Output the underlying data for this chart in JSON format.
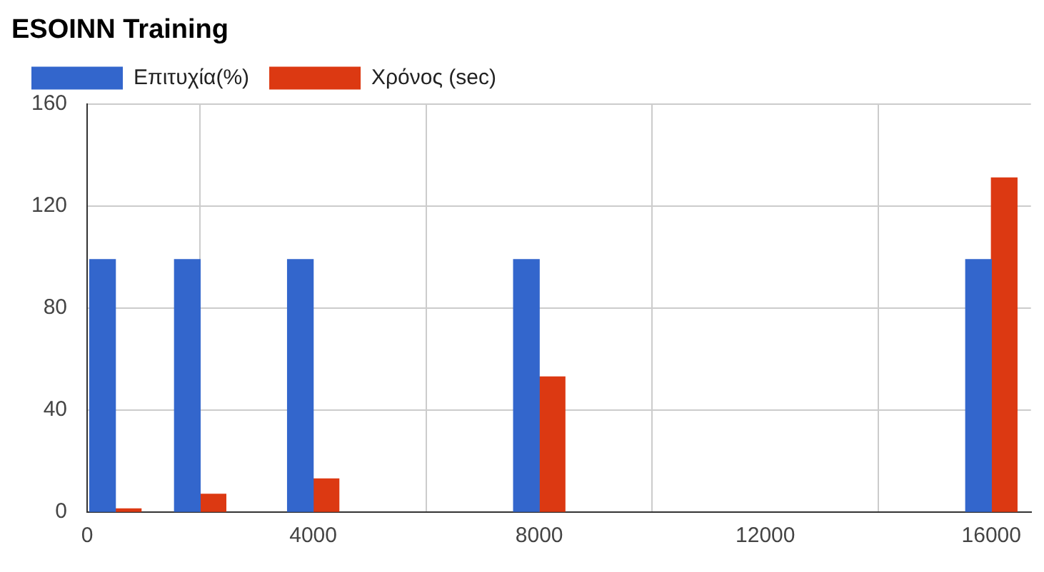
{
  "chart_data": {
    "type": "bar",
    "title": "ESOINN Training",
    "x": [
      500,
      2000,
      4000,
      8000,
      16000
    ],
    "series": [
      {
        "name": "Επιτυχία(%)",
        "color": "#3366cc",
        "values": [
          99,
          99,
          99,
          99,
          99
        ]
      },
      {
        "name": "Χρόνος (sec)",
        "color": "#dc3912",
        "values": [
          1.3,
          7,
          13,
          53,
          131
        ]
      }
    ],
    "xlim": [
      0,
      16700
    ],
    "xticks": [
      0,
      4000,
      8000,
      12000,
      16000
    ],
    "ylim": [
      0,
      160
    ],
    "yticks": [
      0,
      40,
      80,
      120,
      160
    ],
    "grid": true,
    "legend": "top left"
  }
}
